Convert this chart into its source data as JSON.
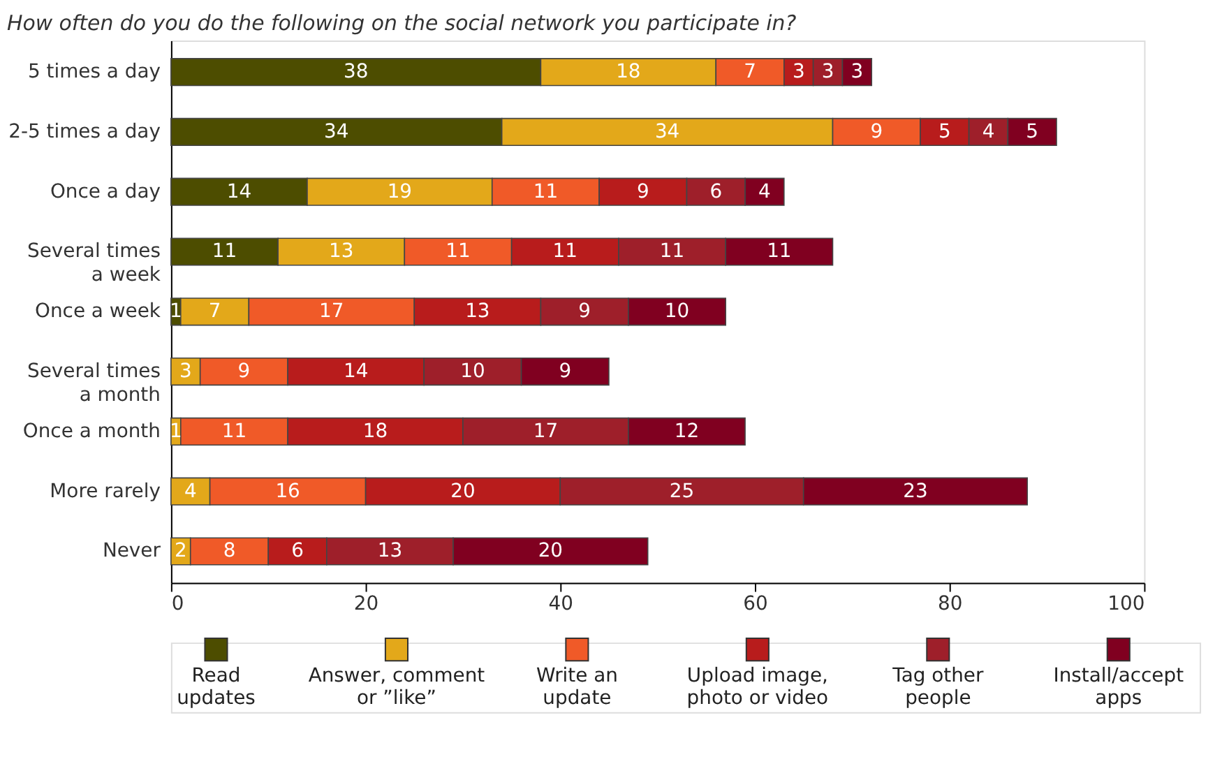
{
  "chart_data": {
    "type": "bar",
    "orientation": "horizontal",
    "stacked": true,
    "title": "How often do you do the following on the social network you participate in?",
    "categories": [
      "5 times a day",
      "2-5 times a day",
      "Once a day",
      "Several times a week",
      "Once a week",
      "Several times a month",
      "Once a month",
      "More rarely",
      "Never"
    ],
    "series": [
      {
        "name": "Read updates",
        "color": "#4d4d00",
        "values": [
          38,
          34,
          14,
          11,
          1,
          null,
          null,
          null,
          null
        ]
      },
      {
        "name": "Answer, comment or ”like”",
        "color": "#e3a81a",
        "values": [
          18,
          34,
          19,
          13,
          7,
          3,
          1,
          4,
          2
        ]
      },
      {
        "name": "Write an update",
        "color": "#f05a28",
        "values": [
          7,
          9,
          11,
          11,
          17,
          9,
          11,
          16,
          8
        ]
      },
      {
        "name": "Upload image, photo or video",
        "color": "#b81c1c",
        "values": [
          3,
          5,
          9,
          11,
          13,
          14,
          18,
          20,
          6
        ]
      },
      {
        "name": "Tag other people",
        "color": "#9e1f2a",
        "values": [
          3,
          4,
          6,
          11,
          9,
          10,
          17,
          25,
          13
        ]
      },
      {
        "name": "Install/accept apps",
        "color": "#800020",
        "values": [
          3,
          5,
          4,
          11,
          10,
          9,
          12,
          23,
          20
        ]
      }
    ],
    "xlim": [
      0,
      100
    ],
    "xticks": [
      0,
      20,
      40,
      60,
      80,
      100
    ],
    "data_labels": true,
    "legend": "bottom",
    "grid": false
  }
}
